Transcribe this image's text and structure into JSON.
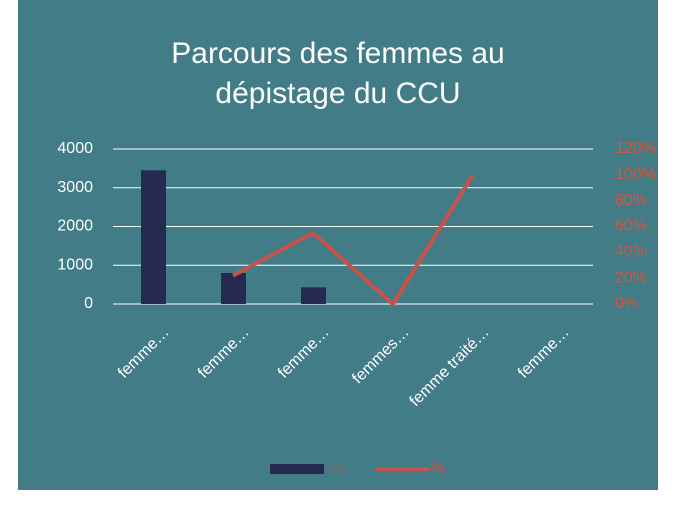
{
  "chart_data": {
    "type": "bar-line",
    "title": "Parcours des femmes au dépistage du CCU",
    "categories": [
      "femme…",
      "femme…",
      "femme…",
      "femmes…",
      "femme traité…",
      "femme…"
    ],
    "series": [
      {
        "name": "Nb",
        "type": "bar",
        "color": "#262a50",
        "values": [
          3450,
          800,
          430,
          0,
          0,
          0
        ]
      },
      {
        "name": "%",
        "type": "line",
        "axis": "y2",
        "color": "#c8524a",
        "values": [
          null,
          22,
          55,
          0,
          100,
          null
        ]
      }
    ],
    "ylim": [
      0,
      4000
    ],
    "yticks": [
      0,
      1000,
      2000,
      3000,
      4000
    ],
    "y2lim": [
      0,
      120
    ],
    "y2ticks": [
      {
        "value": 0,
        "label": "0%"
      },
      {
        "value": 20,
        "label": "20%"
      },
      {
        "value": 40,
        "label": "40%"
      },
      {
        "value": 60,
        "label": "60%"
      },
      {
        "value": 80,
        "label": "80%"
      },
      {
        "value": 100,
        "label": "100%"
      },
      {
        "value": 120,
        "label": "120%"
      }
    ],
    "grid": true,
    "legend": "bottom"
  }
}
